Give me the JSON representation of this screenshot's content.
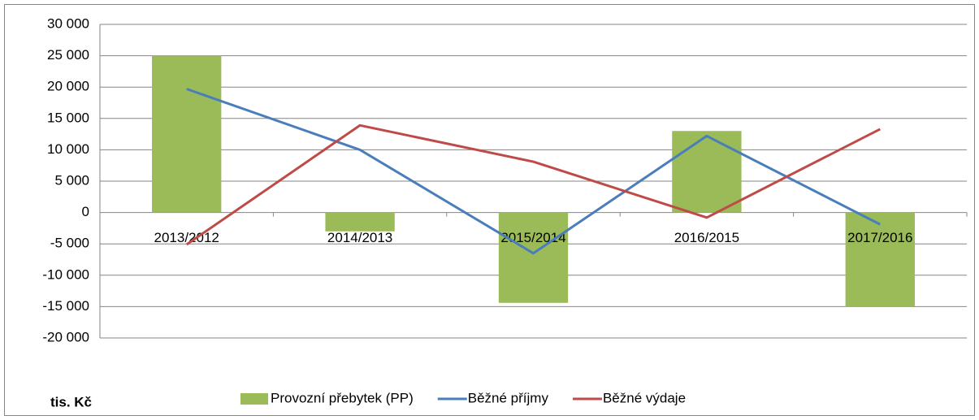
{
  "chart_data": {
    "type": "bar",
    "categories": [
      "2013/2012",
      "2014/2013",
      "2015/2014",
      "2016/2015",
      "2017/2016"
    ],
    "series": [
      {
        "name": "Provozní přebytek (PP)",
        "type": "bar",
        "color": "#9bbb59",
        "values": [
          25000,
          -3000,
          -14400,
          13000,
          -15000
        ]
      },
      {
        "name": "Běžné příjmy",
        "type": "line",
        "color": "#4a7ebb",
        "values": [
          19700,
          10000,
          -6500,
          12200,
          -1900
        ]
      },
      {
        "name": "Běžné výdaje",
        "type": "line",
        "color": "#be4b48",
        "values": [
          -5100,
          13900,
          8100,
          -800,
          13300
        ]
      }
    ],
    "ylim": [
      -20000,
      30000
    ],
    "yticks": [
      {
        "value": -20000,
        "label": "-20 000"
      },
      {
        "value": -15000,
        "label": "-15 000"
      },
      {
        "value": -10000,
        "label": "-10 000"
      },
      {
        "value": -5000,
        "label": "-5 000"
      },
      0,
      {
        "value": 5000,
        "label": "5 000"
      },
      {
        "value": 10000,
        "label": "10 000"
      },
      {
        "value": 15000,
        "label": "15 000"
      },
      {
        "value": 20000,
        "label": "20 000"
      },
      {
        "value": 25000,
        "label": "25 000"
      },
      {
        "value": 30000,
        "label": "30 000"
      }
    ],
    "grid": true,
    "legend": "bottom",
    "unit_label": "tis. Kč"
  }
}
